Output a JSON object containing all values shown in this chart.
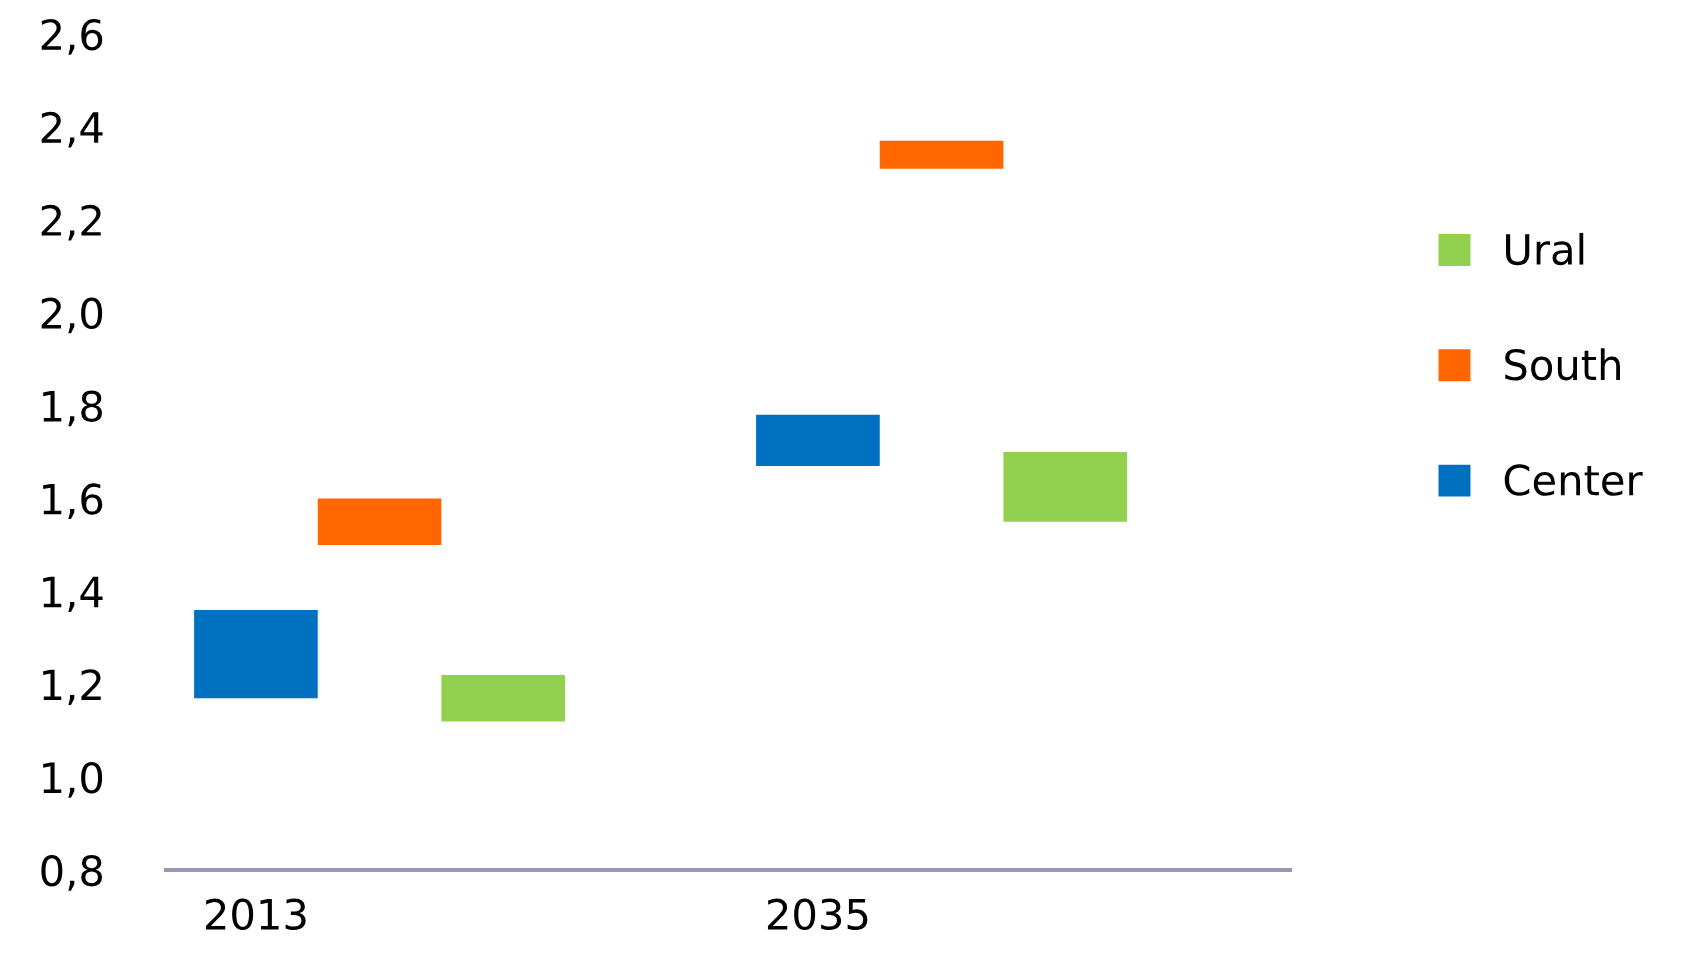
{
  "chart_data": {
    "type": "bar",
    "categories": [
      "2013",
      "2035"
    ],
    "series": [
      {
        "name": "Center",
        "color": "#0070c0",
        "base": [
          1.17,
          1.67
        ],
        "values": [
          0.19,
          0.11
        ]
      },
      {
        "name": "South",
        "color": "#ff6600",
        "base": [
          1.5,
          2.31
        ],
        "values": [
          0.1,
          0.06
        ]
      },
      {
        "name": "Ural",
        "color": "#92d050",
        "base": [
          1.12,
          1.55
        ],
        "values": [
          0.1,
          0.15
        ]
      }
    ],
    "ylim": [
      0.8,
      2.6
    ],
    "yticks": [
      {
        "value": 0.8,
        "label": "0,8"
      },
      {
        "value": 1.0,
        "label": "1,0"
      },
      {
        "value": 1.2,
        "label": "1,2"
      },
      {
        "value": 1.4,
        "label": "1,4"
      },
      {
        "value": 1.6,
        "label": "1,6"
      },
      {
        "value": 1.8,
        "label": "1,8"
      },
      {
        "value": 2.0,
        "label": "2,0"
      },
      {
        "value": 2.2,
        "label": "2,2"
      },
      {
        "value": 2.4,
        "label": "2,4"
      },
      {
        "value": 2.6,
        "label": "2,6"
      }
    ],
    "grid": false,
    "legend": "right"
  }
}
